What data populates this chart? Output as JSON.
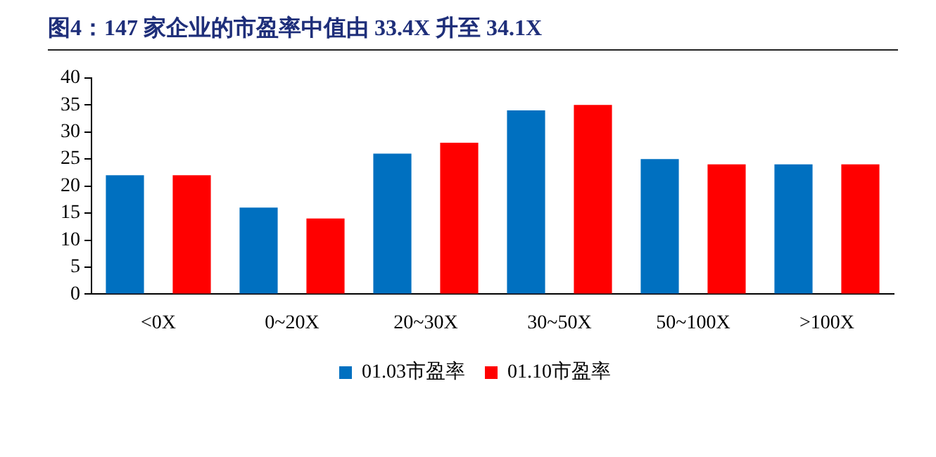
{
  "chart_data": {
    "type": "bar",
    "title": "图4：147 家企业的市盈率中值由 33.4X 升至 34.1X",
    "categories": [
      "<0X",
      "0~20X",
      "20~30X",
      "30~50X",
      "50~100X",
      ">100X"
    ],
    "series": [
      {
        "name": "01.03市盈率",
        "color": "#0070c0",
        "values": [
          22,
          16,
          26,
          34,
          25,
          24
        ]
      },
      {
        "name": "01.10市盈率",
        "color": "#ff0000",
        "values": [
          22,
          14,
          28,
          35,
          24,
          24
        ]
      }
    ],
    "ylim": [
      0,
      40
    ],
    "yticks": [
      0,
      5,
      10,
      15,
      20,
      25,
      30,
      35,
      40
    ],
    "grid": false,
    "legend": "bottom"
  }
}
